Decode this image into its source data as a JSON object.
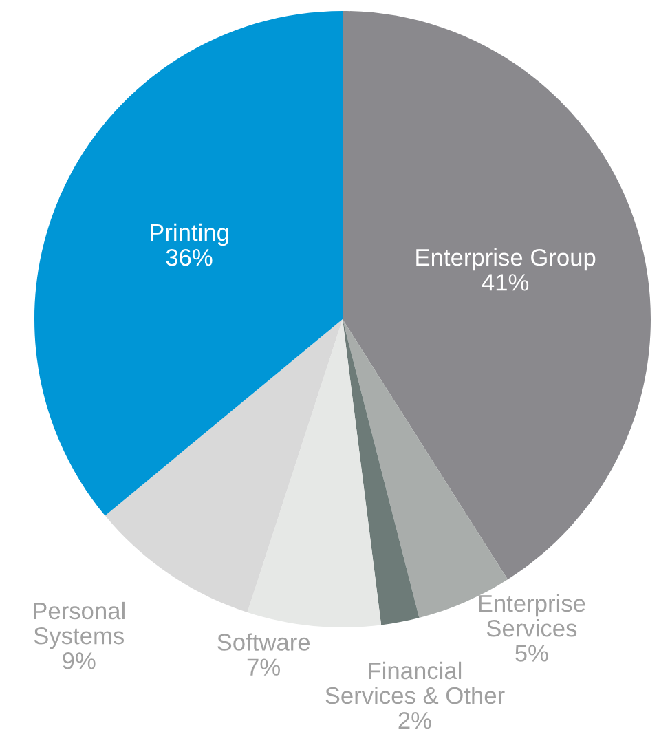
{
  "chart_data": {
    "type": "pie",
    "categories": [
      "Enterprise Group",
      "Enterprise\nServices",
      "Financial\nServices & Other",
      "Software",
      "Personal\nSystems",
      "Printing"
    ],
    "values": [
      41,
      5,
      2,
      7,
      9,
      36
    ],
    "value_labels": [
      "41%",
      "5%",
      "2%",
      "7%",
      "9%",
      "36%"
    ],
    "colors": [
      "#8a898d",
      "#a9adab",
      "#6d7b78",
      "#e6e8e6",
      "#d9d9d9",
      "#0096d6"
    ],
    "legend": false
  }
}
